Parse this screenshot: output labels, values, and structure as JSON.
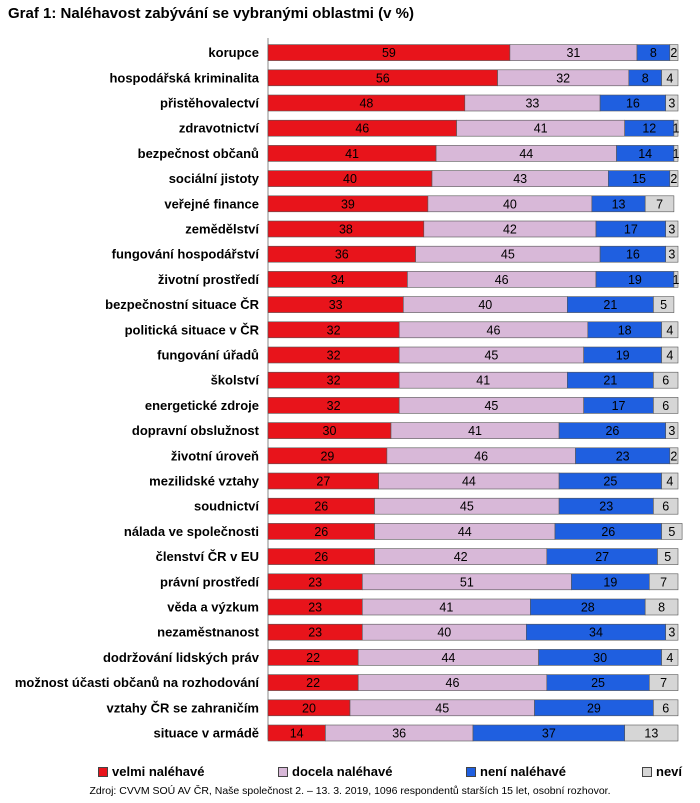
{
  "title": "Graf 1: Naléhavost zabývání se vybranými oblastmi (v %)",
  "colors": {
    "velmi": "#e8141b",
    "docela": "#d8b8d8",
    "neni": "#1f5fe0",
    "nevi": "#d6d6d6"
  },
  "legend": [
    {
      "label": "velmi naléhavé",
      "color_key": "velmi"
    },
    {
      "label": "docela naléhavé",
      "color_key": "docela"
    },
    {
      "label": "není naléhavé",
      "color_key": "neni"
    },
    {
      "label": "neví",
      "color_key": "nevi"
    }
  ],
  "source": "Zdroj: CVVM SOÚ AV ČR,  Naše společnost 2. – 13. 3. 2019, 1096 respondentů starších 15 let, osobní rozhovor.",
  "chart_data": {
    "type": "bar",
    "orientation": "horizontal",
    "stacked": true,
    "xlim": [
      0,
      100
    ],
    "categories": [
      "korupce",
      "hospodářská kriminalita",
      "přistěhovalectví",
      "zdravotnictví",
      "bezpečnost občanů",
      "sociální jistoty",
      "veřejné finance",
      "zemědělství",
      "fungování hospodářství",
      "životní prostředí",
      "bezpečnostní situace ČR",
      "politická situace v ČR",
      "fungování úřadů",
      "školství",
      "energetické zdroje",
      "dopravní obslužnost",
      "životní úroveň",
      "mezilidské vztahy",
      "soudnictví",
      "nálada ve společnosti",
      "členství ČR v EU",
      "právní prostředí",
      "věda a výzkum",
      "nezaměstnanost",
      "dodržování lidských práv",
      "možnost účasti občanů na rozhodování",
      "vztahy ČR se zahraničím",
      "situace v armádě"
    ],
    "series": [
      {
        "name": "velmi naléhavé",
        "values": [
          59,
          56,
          48,
          46,
          41,
          40,
          39,
          38,
          36,
          34,
          33,
          32,
          32,
          32,
          32,
          30,
          29,
          27,
          26,
          26,
          26,
          23,
          23,
          23,
          22,
          22,
          20,
          14
        ]
      },
      {
        "name": "docela naléhavé",
        "values": [
          31,
          32,
          33,
          41,
          44,
          43,
          40,
          42,
          45,
          46,
          40,
          46,
          45,
          41,
          45,
          41,
          46,
          44,
          45,
          44,
          42,
          51,
          41,
          40,
          44,
          46,
          45,
          36
        ]
      },
      {
        "name": "není naléhavé",
        "values": [
          8,
          8,
          16,
          12,
          14,
          15,
          13,
          17,
          16,
          19,
          21,
          18,
          19,
          21,
          17,
          26,
          23,
          25,
          23,
          26,
          27,
          19,
          28,
          34,
          30,
          25,
          29,
          37
        ]
      },
      {
        "name": "neví",
        "values": [
          2,
          4,
          3,
          1,
          1,
          2,
          7,
          3,
          3,
          1,
          5,
          4,
          4,
          6,
          6,
          3,
          2,
          4,
          6,
          5,
          5,
          7,
          8,
          3,
          4,
          7,
          6,
          13
        ]
      }
    ]
  }
}
